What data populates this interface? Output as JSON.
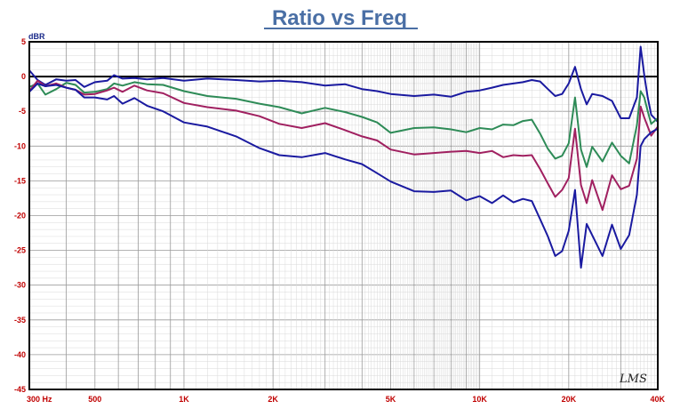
{
  "chart_data": {
    "type": "line",
    "title": "Ratio vs Freq",
    "ylabel": "dBR",
    "xscale": "log",
    "xlim": [
      300,
      40000
    ],
    "ylim": [
      -45,
      5
    ],
    "grid": true,
    "yticks": [
      5,
      0,
      -5,
      -10,
      -15,
      -20,
      -25,
      -30,
      -35,
      -40,
      -45
    ],
    "xtick_labels": [
      {
        "v": 300,
        "t": "300  Hz"
      },
      {
        "v": 500,
        "t": "500"
      },
      {
        "v": 1000,
        "t": "1K"
      },
      {
        "v": 2000,
        "t": "2K"
      },
      {
        "v": 5000,
        "t": "5K"
      },
      {
        "v": 10000,
        "t": "10K"
      },
      {
        "v": 20000,
        "t": "20K"
      },
      {
        "v": 40000,
        "t": "40K"
      }
    ],
    "reference_line": 0,
    "logo": "LMS",
    "series": [
      {
        "color": "#1a1aa0",
        "points": [
          [
            300,
            0.9
          ],
          [
            320,
            -0.5
          ],
          [
            340,
            -1.2
          ],
          [
            370,
            -0.4
          ],
          [
            400,
            -0.6
          ],
          [
            430,
            -0.5
          ],
          [
            460,
            -1.5
          ],
          [
            500,
            -0.8
          ],
          [
            550,
            -0.6
          ],
          [
            580,
            0.2
          ],
          [
            620,
            -0.3
          ],
          [
            680,
            -0.2
          ],
          [
            750,
            -0.4
          ],
          [
            850,
            -0.2
          ],
          [
            1000,
            -0.6
          ],
          [
            1200,
            -0.3
          ],
          [
            1500,
            -0.5
          ],
          [
            1800,
            -0.7
          ],
          [
            2100,
            -0.6
          ],
          [
            2500,
            -0.8
          ],
          [
            3000,
            -1.3
          ],
          [
            3500,
            -1.1
          ],
          [
            4000,
            -1.8
          ],
          [
            4500,
            -2.1
          ],
          [
            5000,
            -2.5
          ],
          [
            6000,
            -2.8
          ],
          [
            7000,
            -2.6
          ],
          [
            8000,
            -2.9
          ],
          [
            9000,
            -2.2
          ],
          [
            10000,
            -2.0
          ],
          [
            11000,
            -1.6
          ],
          [
            12000,
            -1.2
          ],
          [
            13000,
            -1.0
          ],
          [
            14000,
            -0.8
          ],
          [
            15000,
            -0.5
          ],
          [
            16000,
            -0.7
          ],
          [
            17000,
            -1.8
          ],
          [
            18000,
            -2.8
          ],
          [
            19000,
            -2.5
          ],
          [
            20000,
            -1.0
          ],
          [
            21000,
            1.4
          ],
          [
            22000,
            -1.8
          ],
          [
            23000,
            -4.0
          ],
          [
            24000,
            -2.5
          ],
          [
            26000,
            -2.8
          ],
          [
            28000,
            -3.5
          ],
          [
            30000,
            -6.0
          ],
          [
            32000,
            -6.0
          ],
          [
            34000,
            -3.0
          ],
          [
            35000,
            4.3
          ],
          [
            36000,
            0.2
          ],
          [
            37000,
            -3.0
          ],
          [
            38000,
            -5.5
          ],
          [
            40000,
            -6.5
          ]
        ]
      },
      {
        "color": "#2e8b57",
        "points": [
          [
            300,
            -1.5
          ],
          [
            320,
            -1.0
          ],
          [
            340,
            -2.6
          ],
          [
            370,
            -1.8
          ],
          [
            400,
            -0.9
          ],
          [
            430,
            -1.2
          ],
          [
            460,
            -2.3
          ],
          [
            500,
            -2.2
          ],
          [
            550,
            -1.8
          ],
          [
            580,
            -1.0
          ],
          [
            620,
            -1.3
          ],
          [
            680,
            -0.8
          ],
          [
            750,
            -1.1
          ],
          [
            850,
            -1.2
          ],
          [
            1000,
            -2.1
          ],
          [
            1200,
            -2.8
          ],
          [
            1500,
            -3.2
          ],
          [
            1800,
            -3.9
          ],
          [
            2100,
            -4.4
          ],
          [
            2500,
            -5.3
          ],
          [
            3000,
            -4.5
          ],
          [
            3500,
            -5.1
          ],
          [
            4000,
            -5.8
          ],
          [
            4500,
            -6.6
          ],
          [
            5000,
            -8.1
          ],
          [
            6000,
            -7.4
          ],
          [
            7000,
            -7.3
          ],
          [
            8000,
            -7.6
          ],
          [
            9000,
            -8.0
          ],
          [
            10000,
            -7.4
          ],
          [
            11000,
            -7.6
          ],
          [
            12000,
            -6.9
          ],
          [
            13000,
            -7.0
          ],
          [
            14000,
            -6.4
          ],
          [
            15000,
            -6.2
          ],
          [
            16000,
            -8.2
          ],
          [
            17000,
            -10.4
          ],
          [
            18000,
            -11.8
          ],
          [
            19000,
            -11.4
          ],
          [
            20000,
            -9.6
          ],
          [
            21000,
            -3.0
          ],
          [
            22000,
            -10.5
          ],
          [
            23000,
            -13.0
          ],
          [
            24000,
            -10.1
          ],
          [
            26000,
            -12.2
          ],
          [
            28000,
            -9.5
          ],
          [
            30000,
            -11.4
          ],
          [
            32000,
            -12.5
          ],
          [
            34000,
            -7.0
          ],
          [
            35000,
            -2.1
          ],
          [
            36000,
            -3.0
          ],
          [
            37000,
            -5.0
          ],
          [
            38000,
            -6.8
          ],
          [
            40000,
            -6.0
          ]
        ]
      },
      {
        "color": "#a02060",
        "points": [
          [
            300,
            -2.1
          ],
          [
            320,
            -0.6
          ],
          [
            340,
            -1.4
          ],
          [
            370,
            -1.0
          ],
          [
            400,
            -1.6
          ],
          [
            430,
            -1.9
          ],
          [
            460,
            -2.6
          ],
          [
            500,
            -2.5
          ],
          [
            550,
            -2.0
          ],
          [
            580,
            -1.6
          ],
          [
            620,
            -2.2
          ],
          [
            680,
            -1.3
          ],
          [
            750,
            -2.0
          ],
          [
            850,
            -2.4
          ],
          [
            1000,
            -3.8
          ],
          [
            1200,
            -4.4
          ],
          [
            1500,
            -4.9
          ],
          [
            1800,
            -5.7
          ],
          [
            2100,
            -6.8
          ],
          [
            2500,
            -7.4
          ],
          [
            3000,
            -6.7
          ],
          [
            3500,
            -7.7
          ],
          [
            4000,
            -8.6
          ],
          [
            4500,
            -9.2
          ],
          [
            5000,
            -10.5
          ],
          [
            6000,
            -11.2
          ],
          [
            7000,
            -11.0
          ],
          [
            8000,
            -10.8
          ],
          [
            9000,
            -10.7
          ],
          [
            10000,
            -11.0
          ],
          [
            11000,
            -10.7
          ],
          [
            12000,
            -11.6
          ],
          [
            13000,
            -11.3
          ],
          [
            14000,
            -11.4
          ],
          [
            15000,
            -11.3
          ],
          [
            16000,
            -13.3
          ],
          [
            17000,
            -15.4
          ],
          [
            18000,
            -17.3
          ],
          [
            19000,
            -16.3
          ],
          [
            20000,
            -14.6
          ],
          [
            21000,
            -7.5
          ],
          [
            22000,
            -15.6
          ],
          [
            23000,
            -18.2
          ],
          [
            24000,
            -14.9
          ],
          [
            26000,
            -19.2
          ],
          [
            28000,
            -14.2
          ],
          [
            30000,
            -16.2
          ],
          [
            32000,
            -15.7
          ],
          [
            34000,
            -11.8
          ],
          [
            35000,
            -4.3
          ],
          [
            36000,
            -5.9
          ],
          [
            37000,
            -7.2
          ],
          [
            38000,
            -8.5
          ],
          [
            40000,
            -7.2
          ]
        ]
      },
      {
        "color": "#1a1aa0",
        "points": [
          [
            300,
            -2.2
          ],
          [
            320,
            -1.0
          ],
          [
            340,
            -1.4
          ],
          [
            370,
            -1.2
          ],
          [
            400,
            -1.6
          ],
          [
            430,
            -1.9
          ],
          [
            460,
            -3.0
          ],
          [
            500,
            -3.0
          ],
          [
            550,
            -3.3
          ],
          [
            580,
            -2.8
          ],
          [
            620,
            -3.9
          ],
          [
            680,
            -3.1
          ],
          [
            750,
            -4.2
          ],
          [
            850,
            -5.0
          ],
          [
            1000,
            -6.6
          ],
          [
            1200,
            -7.2
          ],
          [
            1500,
            -8.6
          ],
          [
            1800,
            -10.3
          ],
          [
            2100,
            -11.3
          ],
          [
            2500,
            -11.6
          ],
          [
            3000,
            -11.0
          ],
          [
            3500,
            -11.9
          ],
          [
            4000,
            -12.6
          ],
          [
            4500,
            -13.9
          ],
          [
            5000,
            -15.1
          ],
          [
            6000,
            -16.5
          ],
          [
            7000,
            -16.6
          ],
          [
            8000,
            -16.4
          ],
          [
            9000,
            -17.8
          ],
          [
            10000,
            -17.2
          ],
          [
            11000,
            -18.2
          ],
          [
            12000,
            -17.1
          ],
          [
            13000,
            -18.1
          ],
          [
            14000,
            -17.6
          ],
          [
            15000,
            -17.9
          ],
          [
            16000,
            -20.5
          ],
          [
            17000,
            -23.0
          ],
          [
            18000,
            -25.8
          ],
          [
            19000,
            -25.1
          ],
          [
            20000,
            -22.2
          ],
          [
            21000,
            -16.3
          ],
          [
            22000,
            -27.5
          ],
          [
            23000,
            -21.2
          ],
          [
            24000,
            -22.8
          ],
          [
            26000,
            -25.8
          ],
          [
            28000,
            -21.3
          ],
          [
            30000,
            -24.8
          ],
          [
            32000,
            -22.8
          ],
          [
            34000,
            -17.0
          ],
          [
            35000,
            -10.0
          ],
          [
            36000,
            -9.0
          ],
          [
            37000,
            -8.5
          ],
          [
            38000,
            -8.0
          ],
          [
            40000,
            -7.5
          ]
        ]
      }
    ]
  }
}
